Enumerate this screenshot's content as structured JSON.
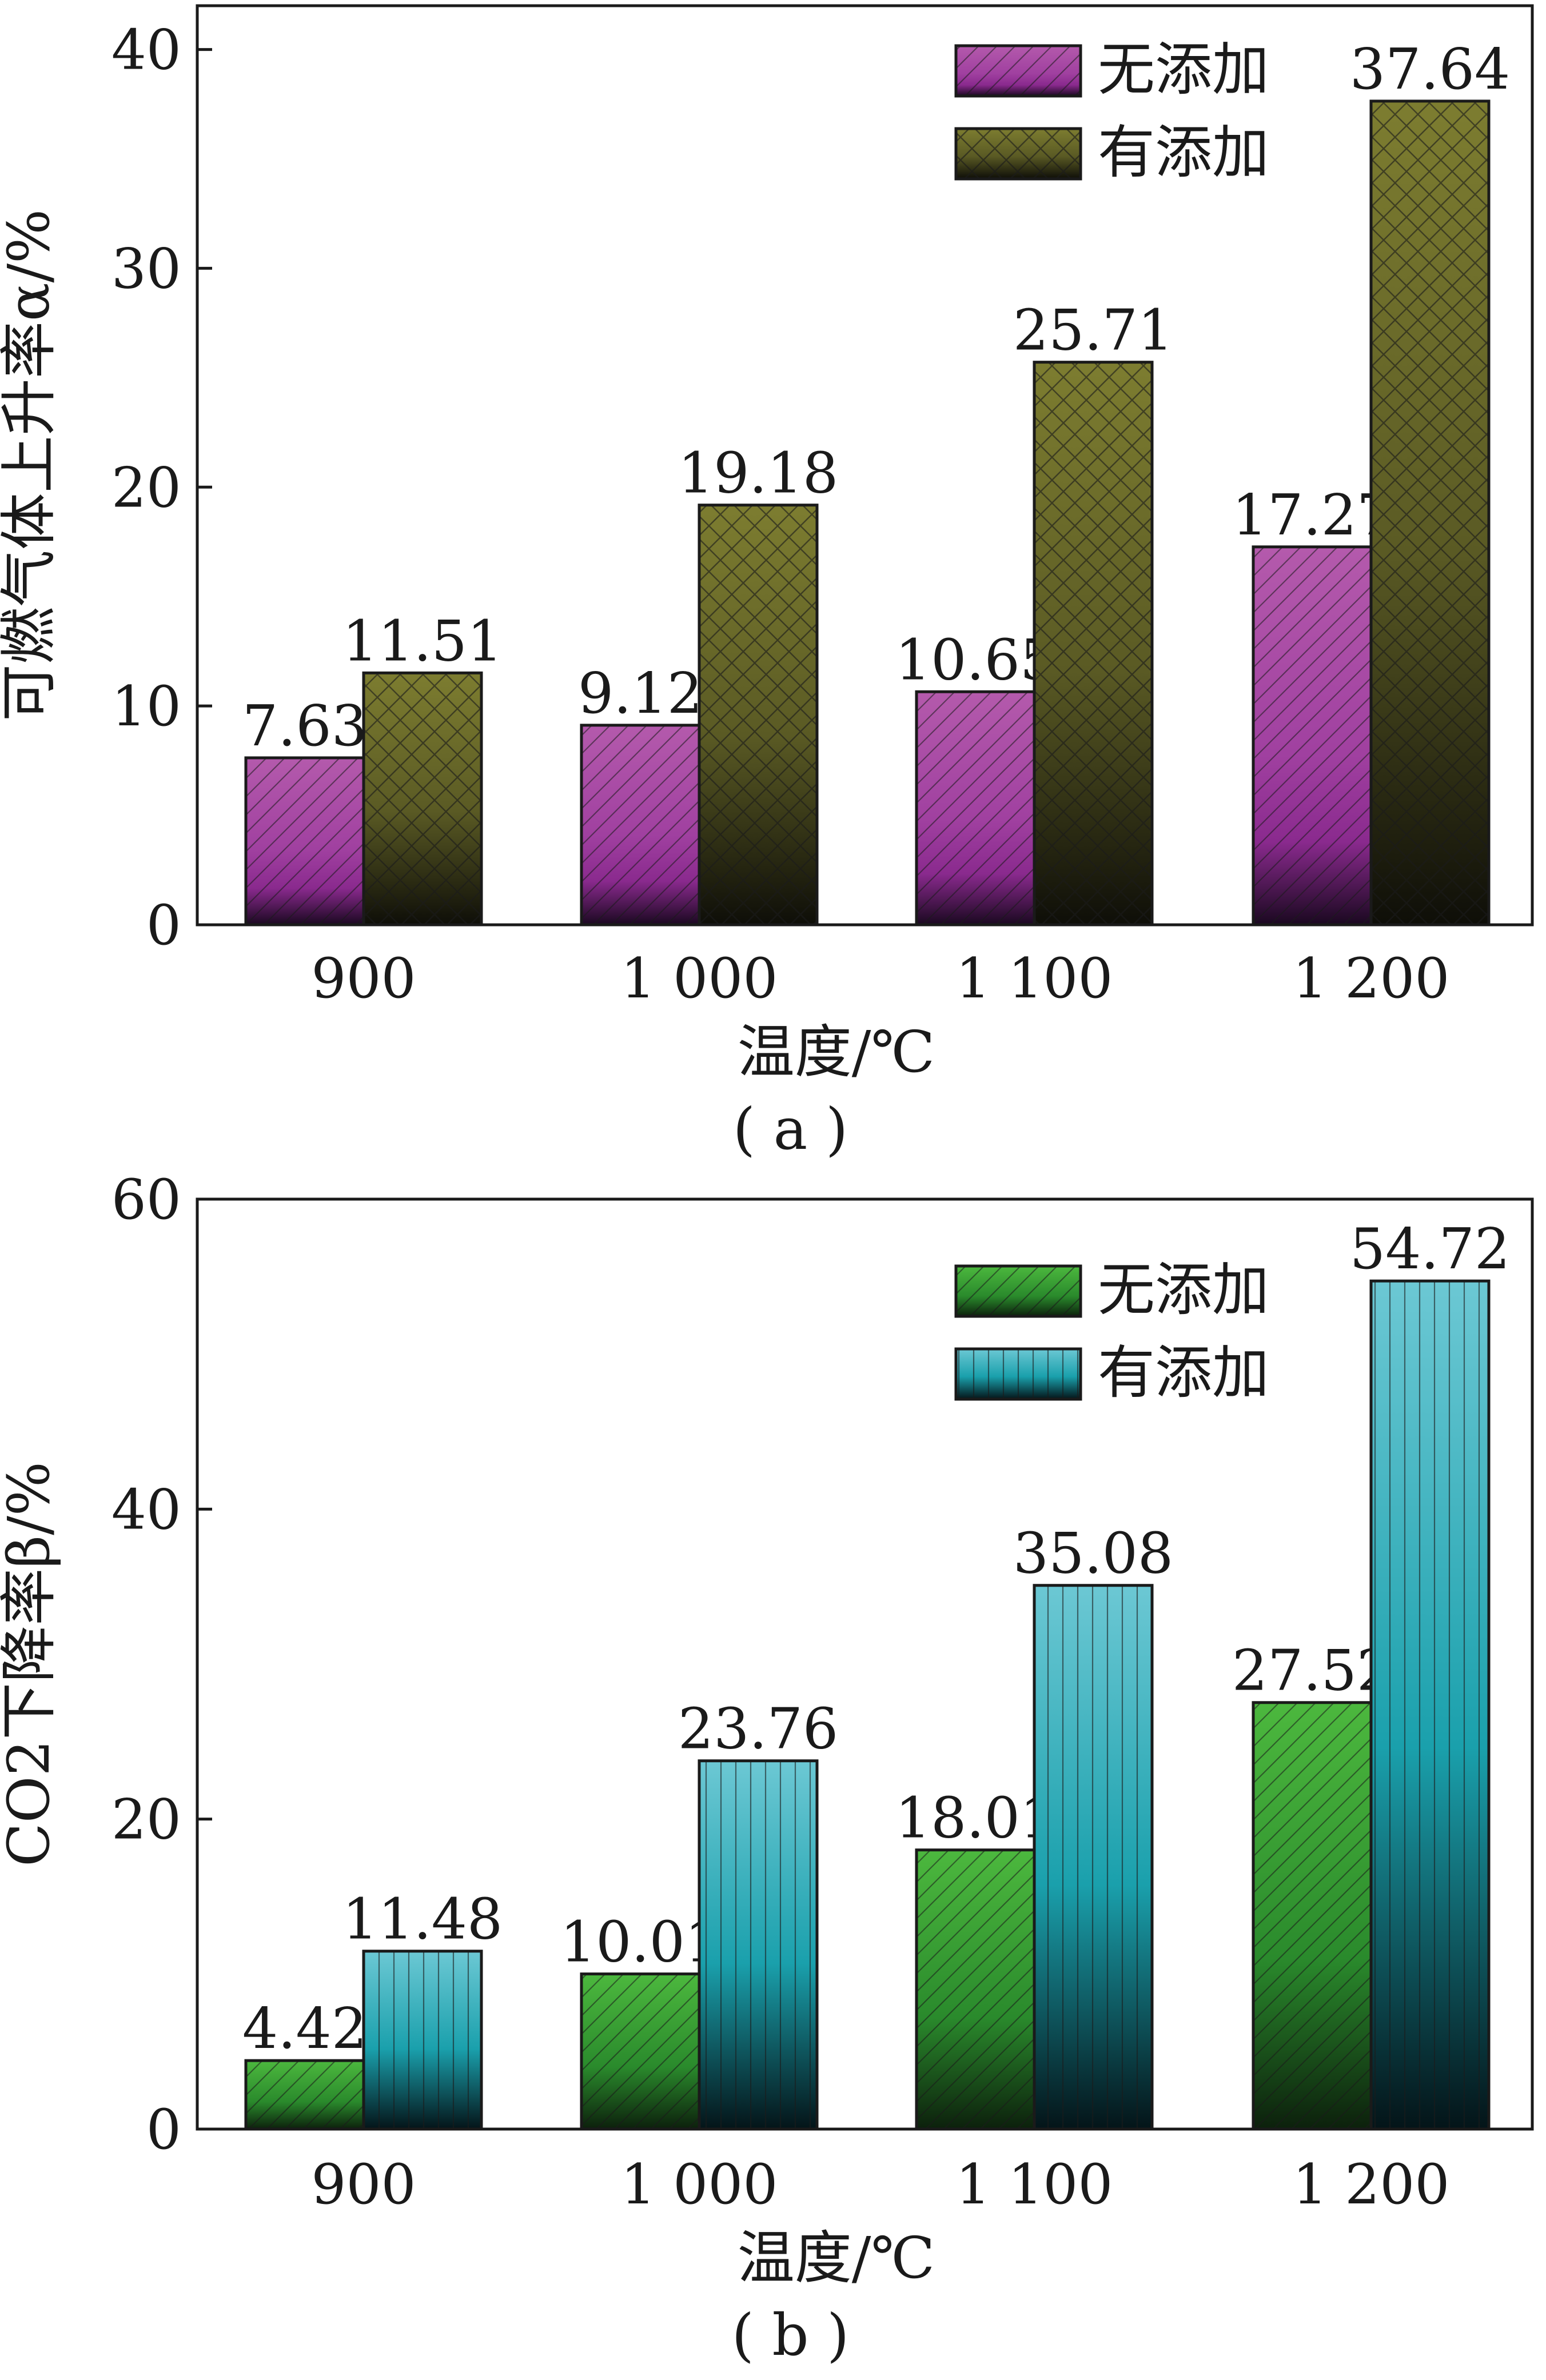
{
  "chart_data": [
    {
      "type": "bar",
      "categories": [
        "900",
        "1 000",
        "1 100",
        "1 200"
      ],
      "series": [
        {
          "name": "无添加",
          "values": [
            7.63,
            9.12,
            10.65,
            17.27
          ],
          "color": "#a855a0"
        },
        {
          "name": "有添加",
          "values": [
            11.51,
            19.18,
            25.71,
            37.64
          ],
          "color": "#6e6e2a"
        }
      ],
      "value_labels": [
        [
          "7.63",
          "9.12",
          "10.65",
          "17.27"
        ],
        [
          "11.51",
          "19.18",
          "25.71",
          "37.64"
        ]
      ],
      "xlabel": "温度/℃",
      "ylabel": "可燃气体上升率α/%",
      "ylim": [
        0,
        42
      ],
      "yticks": [
        "0",
        "10",
        "20",
        "30",
        "40"
      ],
      "legend": "top-right",
      "caption": "( a )"
    },
    {
      "type": "bar",
      "categories": [
        "900",
        "1 000",
        "1 100",
        "1 200"
      ],
      "series": [
        {
          "name": "无添加",
          "values": [
            4.42,
            10.01,
            18.01,
            27.52
          ],
          "color": "#3aa838"
        },
        {
          "name": "有添加",
          "values": [
            11.48,
            23.76,
            35.08,
            54.72
          ],
          "color": "#3ab4c4"
        }
      ],
      "value_labels": [
        [
          "4.42",
          "10.01",
          "18.01",
          "27.52"
        ],
        [
          "11.48",
          "23.76",
          "35.08",
          "54.72"
        ]
      ],
      "xlabel": "温度/℃",
      "ylabel": "CO2下降率β/%",
      "ylim": [
        0,
        60
      ],
      "yticks": [
        "0",
        "20",
        "40",
        "60"
      ],
      "legend": "top-right",
      "caption": "( b )"
    }
  ]
}
